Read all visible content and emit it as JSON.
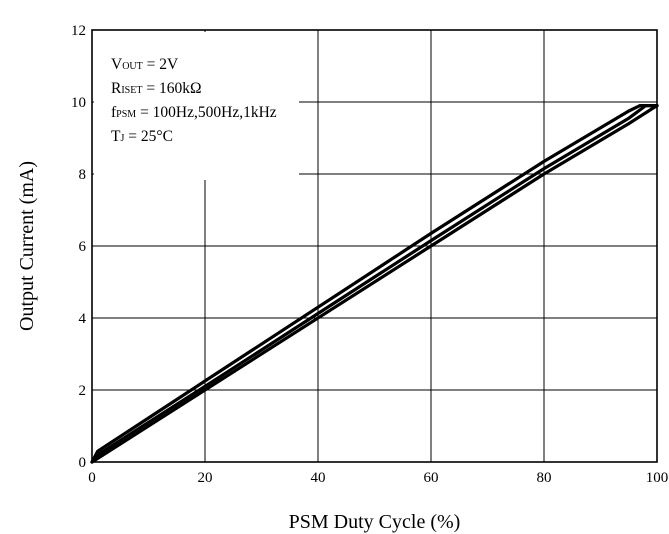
{
  "chart_data": {
    "type": "line",
    "title": "",
    "xlabel": "PSM Duty Cycle (%)",
    "ylabel": "Output Current (mA)",
    "xlim": [
      0,
      100
    ],
    "ylim": [
      0,
      12
    ],
    "x_ticks": [
      0,
      20,
      40,
      60,
      80,
      100
    ],
    "y_ticks": [
      0,
      2,
      4,
      6,
      8,
      10,
      12
    ],
    "grid": true,
    "legend": "none",
    "line_color": "#000000",
    "annotations": [
      {
        "main": "V",
        "sub": "OUT",
        "rest": " = 2V"
      },
      {
        "main": "R",
        "sub": "ISET",
        "rest": " = 160kΩ"
      },
      {
        "main": "f",
        "sub": "PSM",
        "rest": " = 100Hz,500Hz,1kHz"
      },
      {
        "main": "T",
        "sub": "J",
        "rest": " = 25°C"
      }
    ],
    "series": [
      {
        "x": [
          0,
          1,
          20,
          60,
          80,
          95,
          97,
          100
        ],
        "y": [
          0,
          0.3,
          2.25,
          6.35,
          8.35,
          9.75,
          9.9,
          9.9
        ]
      },
      {
        "x": [
          0,
          1,
          20,
          60,
          80,
          95,
          98,
          100
        ],
        "y": [
          0,
          0.2,
          2.1,
          6.15,
          8.15,
          9.55,
          9.9,
          9.9
        ]
      },
      {
        "x": [
          0,
          1,
          20,
          60,
          80,
          95,
          100
        ],
        "y": [
          0,
          0.1,
          2.0,
          6.0,
          8.0,
          9.4,
          9.9
        ]
      }
    ]
  }
}
